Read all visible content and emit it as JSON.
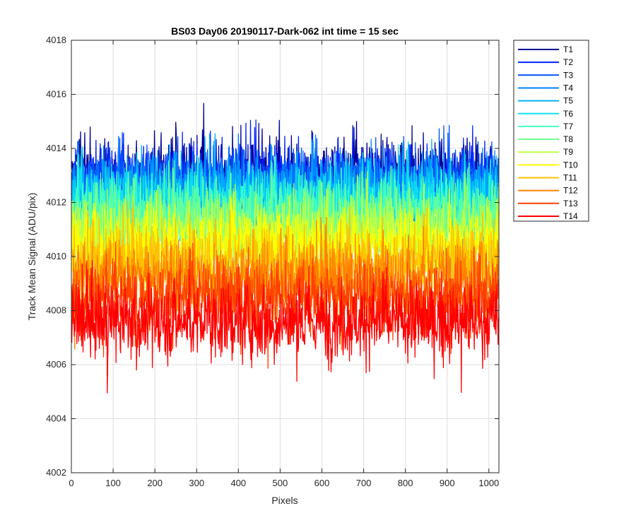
{
  "chart_data": {
    "type": "line",
    "title": "BS03 Day06 20190117-Dark-062 int time = 15 sec",
    "xlabel": "Pixels",
    "ylabel": "Track Mean Signal (ADU/pix)",
    "xlim": [
      0,
      1024
    ],
    "ylim": [
      4002,
      4018
    ],
    "xticks": [
      0,
      100,
      200,
      300,
      400,
      500,
      600,
      700,
      800,
      900,
      1000
    ],
    "yticks": [
      4002,
      4004,
      4006,
      4008,
      4010,
      4012,
      4014,
      4016,
      4018
    ],
    "grid": true,
    "legend_position": "outside-top-right",
    "noise_amplitude": 1.8,
    "series": [
      {
        "name": "T1",
        "color": "#00008f",
        "mean": 4013.0
      },
      {
        "name": "T2",
        "color": "#0020ff",
        "mean": 4012.8
      },
      {
        "name": "T3",
        "color": "#0050ff",
        "mean": 4012.6
      },
      {
        "name": "T4",
        "color": "#0080ff",
        "mean": 4012.5
      },
      {
        "name": "T5",
        "color": "#00b0ff",
        "mean": 4012.3
      },
      {
        "name": "T6",
        "color": "#10e0ef",
        "mean": 4012.0
      },
      {
        "name": "T7",
        "color": "#40ffbf",
        "mean": 4011.7
      },
      {
        "name": "T8",
        "color": "#70ff8f",
        "mean": 4011.3
      },
      {
        "name": "T9",
        "color": "#bfff40",
        "mean": 4010.9
      },
      {
        "name": "T10",
        "color": "#ffff00",
        "mean": 4010.4
      },
      {
        "name": "T11",
        "color": "#ffc000",
        "mean": 4009.8
      },
      {
        "name": "T12",
        "color": "#ff8000",
        "mean": 4009.2
      },
      {
        "name": "T13",
        "color": "#ff4000",
        "mean": 4008.5
      },
      {
        "name": "T14",
        "color": "#ff0000",
        "mean": 4007.6
      }
    ]
  }
}
